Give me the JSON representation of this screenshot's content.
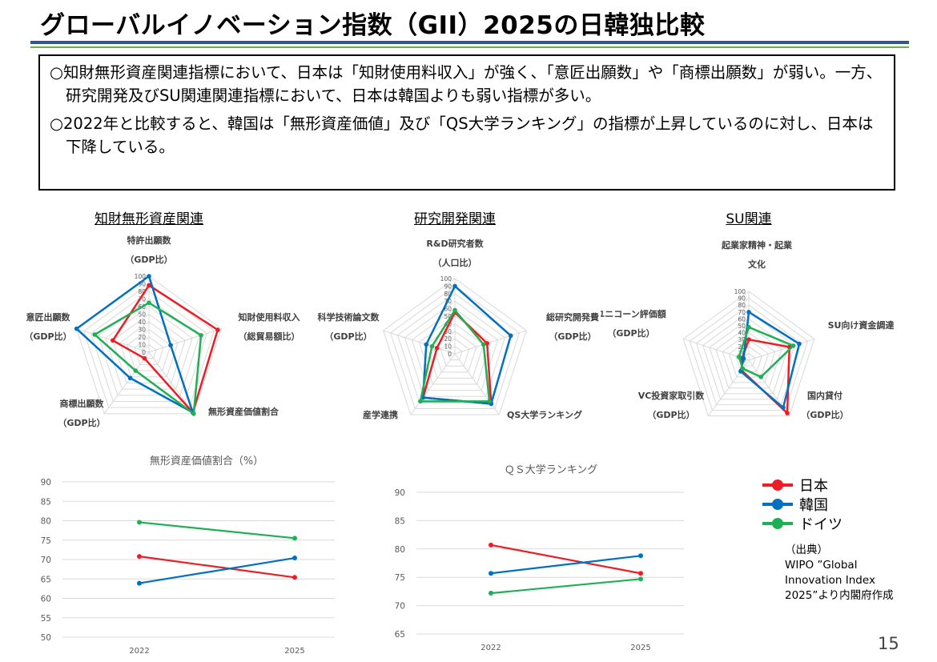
{
  "title": "グローバルイノベーション指数（GII）2025の日韓独比較",
  "summary": [
    "○知財無形資産関連指標において、日本は「知財使用料収入」が強く、「意匠出願数」や「商標出願数」が弱い。一方、研究開発及びSU関連関連指標において、日本は韓国よりも弱い指標が多い。",
    "○2022年と比較すると、韓国は「無形資産価値」及び「QS大学ランキング」の指標が上昇しているのに対し、日本は下降している。"
  ],
  "colors": {
    "japan": "#ee1c25",
    "korea": "#0070c0",
    "germany": "#1faf55"
  },
  "legend": [
    {
      "label": "日本",
      "color": "#ee1c25"
    },
    {
      "label": "韓国",
      "color": "#0070c0"
    },
    {
      "label": "ドイツ",
      "color": "#1faf55"
    }
  ],
  "source": [
    "（出典）",
    "WIPO ”Global Innovation Index 2025”より内閣府作成"
  ],
  "page_number": "15",
  "chart_data": [
    {
      "type": "radar",
      "title": "知財無形資産関連",
      "axes": [
        "特許出願数（GDP比）",
        "知財使用料収入（総貿易額比）",
        "無形資産価値割合",
        "商標出願数（GDP比）",
        "意匠出願数（GDP比）"
      ],
      "axis_label_lines": [
        [
          "特許出願数",
          "（GDP比）"
        ],
        [
          "知財使用料収入",
          "（総貿易額比）"
        ],
        [
          "無形資産価値割合"
        ],
        [
          "商標出願数",
          "（GDP比）"
        ],
        [
          "意匠出願数",
          "（GDP比）"
        ]
      ],
      "range": [
        0,
        100
      ],
      "tick_values": [
        0,
        10,
        20,
        30,
        40,
        50,
        60,
        70,
        80,
        90,
        100
      ],
      "series": [
        {
          "name": "日本",
          "values": [
            88,
            95,
            98,
            10,
            50
          ]
        },
        {
          "name": "韓国",
          "values": [
            100,
            30,
            98,
            42,
            100
          ]
        },
        {
          "name": "ドイツ",
          "values": [
            65,
            72,
            100,
            30,
            75
          ]
        }
      ]
    },
    {
      "type": "radar",
      "title": "研究開発関連",
      "axes": [
        "R&D研究者数（人口比）",
        "総研究開発費（GDP比）",
        "QS大学ランキング",
        "産学連携",
        "科学技術論文数（GDP比）"
      ],
      "axis_label_lines": [
        [
          "R&D研究者数",
          "（人口比）"
        ],
        [
          "総研究開発費",
          "（GDP比）"
        ],
        [
          "QS大学ランキング"
        ],
        [
          "産学連携"
        ],
        [
          "科学技術論文数",
          "（GDP比）"
        ]
      ],
      "range": [
        0,
        100
      ],
      "tick_values": [
        0,
        10,
        20,
        30,
        40,
        50,
        60,
        70,
        80,
        90,
        100
      ],
      "series": [
        {
          "name": "日本",
          "values": [
            55,
            45,
            82,
            72,
            25
          ]
        },
        {
          "name": "韓国",
          "values": [
            90,
            78,
            82,
            72,
            40
          ]
        },
        {
          "name": "ドイツ",
          "values": [
            58,
            40,
            78,
            78,
            32
          ]
        }
      ]
    },
    {
      "type": "radar",
      "title": "SU関連",
      "axes": [
        "起業家精神・起業文化",
        "SU向け資金調達",
        "国内貸付（GDP比）",
        "VC投資家取引数（GDP比）",
        "ユニコーン評価額（GDP比）"
      ],
      "axis_label_lines": [
        [
          "起業家精神・起業",
          "文化"
        ],
        [
          "SU向け資金調達"
        ],
        [
          "国内貸付",
          "（GDP比）"
        ],
        [
          "VC投資家取引数",
          "（GDP比）"
        ],
        [
          "ユニコーン評価額",
          "（GDP比）"
        ]
      ],
      "range": [
        0,
        100
      ],
      "tick_values": [
        0,
        10,
        20,
        30,
        40,
        50,
        60,
        70,
        80,
        90,
        100
      ],
      "series": [
        {
          "name": "日本",
          "values": [
            30,
            62,
            95,
            18,
            10
          ]
        },
        {
          "name": "韓国",
          "values": [
            70,
            77,
            85,
            20,
            8
          ]
        },
        {
          "name": "ドイツ",
          "values": [
            48,
            68,
            30,
            15,
            15
          ]
        }
      ]
    },
    {
      "type": "line",
      "title": "無形資産価値割合（%）",
      "categories": [
        "2022",
        "2025"
      ],
      "ylim": [
        50,
        90
      ],
      "yticks": [
        50,
        55,
        60,
        65,
        70,
        75,
        80,
        85,
        90
      ],
      "series": [
        {
          "name": "日本",
          "values": [
            70.8,
            65.4
          ]
        },
        {
          "name": "韓国",
          "values": [
            63.9,
            70.4
          ]
        },
        {
          "name": "ドイツ",
          "values": [
            79.6,
            75.5
          ]
        }
      ]
    },
    {
      "type": "line",
      "title": "ＱＳ大学ランキング",
      "categories": [
        "2022",
        "2025"
      ],
      "ylim": [
        65,
        90
      ],
      "yticks": [
        65,
        70,
        75,
        80,
        85,
        90
      ],
      "series": [
        {
          "name": "日本",
          "values": [
            80.7,
            75.7
          ]
        },
        {
          "name": "韓国",
          "values": [
            75.7,
            78.8
          ]
        },
        {
          "name": "ドイツ",
          "values": [
            72.2,
            74.7
          ]
        }
      ]
    }
  ]
}
